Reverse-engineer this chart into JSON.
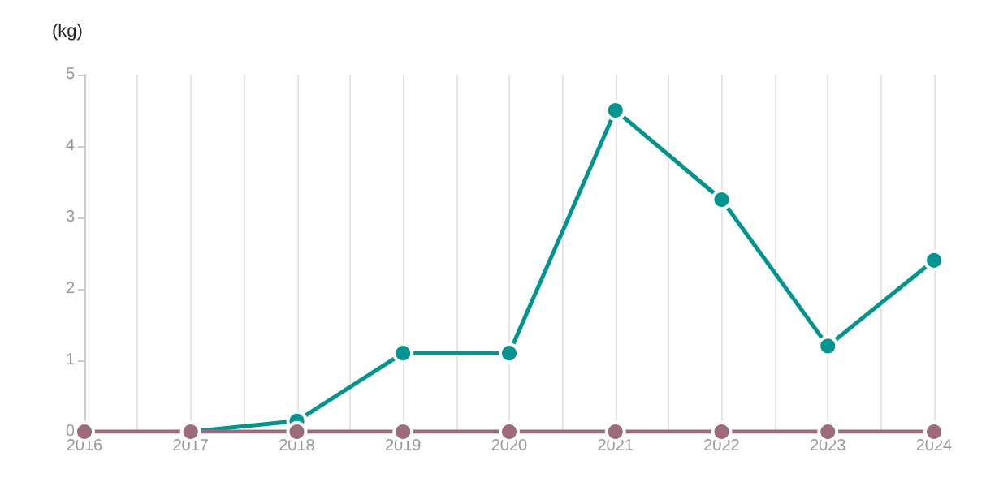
{
  "chart_data": {
    "type": "line",
    "ylabel": "(kg)",
    "x": [
      2016,
      2017,
      2018,
      2019,
      2020,
      2021,
      2022,
      2023,
      2024
    ],
    "series": [
      {
        "color": "#00968f",
        "values": [
          null,
          0,
          0.15,
          1.1,
          1.1,
          4.5,
          3.25,
          1.2,
          2.4
        ]
      },
      {
        "color": "#9e6b7b",
        "values": [
          0,
          0,
          0,
          0,
          0,
          0,
          0,
          0,
          0
        ]
      }
    ],
    "xlim": [
      2016,
      2024
    ],
    "xticks": [
      2016,
      {
        "value": 2016.5,
        "label": null
      },
      2017,
      {
        "value": 2017.5,
        "label": null
      },
      2018,
      {
        "value": 2018.5,
        "label": null
      },
      2019,
      {
        "value": 2019.5,
        "label": null
      },
      2020,
      {
        "value": 2020.5,
        "label": null
      },
      2021,
      {
        "value": 2021.5,
        "label": null
      },
      2022,
      {
        "value": 2022.5,
        "label": null
      },
      2023,
      {
        "value": 2023.5,
        "label": null
      },
      2024
    ],
    "ylim": [
      0,
      5
    ],
    "yticks": [
      0,
      1,
      2,
      3,
      4,
      5
    ],
    "grid": "x",
    "marker": "circle",
    "line_style": "solid"
  }
}
